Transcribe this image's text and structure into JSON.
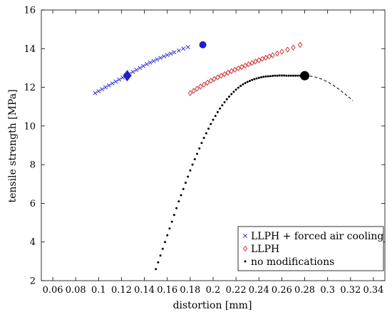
{
  "chart_data": {
    "type": "scatter",
    "xlabel": "distortion [mm]",
    "ylabel": "tensile strength [MPa]",
    "xlim": [
      0.05,
      0.35
    ],
    "ylim": [
      2,
      16
    ],
    "xticks": [
      "0.06",
      "0.08",
      "0.1",
      "0.12",
      "0.14",
      "0.16",
      "0.18",
      "0.2",
      "0.22",
      "0.24",
      "0.26",
      "0.28",
      "0.3",
      "0.32",
      "0.34"
    ],
    "yticks": [
      "2",
      "4",
      "6",
      "8",
      "10",
      "12",
      "14",
      "16"
    ],
    "grid": false,
    "legend_position": "bottom-right",
    "series": [
      {
        "name": "LLPH + forced air cooling",
        "marker": "x",
        "color": "#1f1fcc",
        "x": [
          0.097,
          0.1,
          0.103,
          0.106,
          0.109,
          0.112,
          0.115,
          0.118,
          0.121,
          0.124,
          0.127,
          0.13,
          0.133,
          0.136,
          0.139,
          0.142,
          0.145,
          0.148,
          0.151,
          0.154,
          0.157,
          0.16,
          0.163,
          0.166,
          0.17,
          0.174,
          0.178
        ],
        "y": [
          11.7,
          11.8,
          11.9,
          12.0,
          12.1,
          12.2,
          12.3,
          12.4,
          12.5,
          12.6,
          12.7,
          12.8,
          12.9,
          13.0,
          13.1,
          13.2,
          13.28,
          13.36,
          13.44,
          13.52,
          13.6,
          13.67,
          13.74,
          13.81,
          13.9,
          14.0,
          14.08
        ],
        "highlight_points": [
          {
            "x": 0.125,
            "y": 12.6,
            "shape": "diamond"
          },
          {
            "x": 0.191,
            "y": 14.2,
            "shape": "circle"
          }
        ]
      },
      {
        "name": "LLPH",
        "marker": "diamond",
        "color": "#cc2222",
        "x": [
          0.18,
          0.183,
          0.186,
          0.189,
          0.192,
          0.195,
          0.198,
          0.201,
          0.204,
          0.207,
          0.21,
          0.213,
          0.216,
          0.219,
          0.222,
          0.225,
          0.228,
          0.231,
          0.234,
          0.237,
          0.24,
          0.243,
          0.246,
          0.249,
          0.252,
          0.256,
          0.26,
          0.265,
          0.27,
          0.276
        ],
        "y": [
          11.7,
          11.82,
          11.93,
          12.04,
          12.14,
          12.24,
          12.34,
          12.43,
          12.52,
          12.6,
          12.68,
          12.76,
          12.84,
          12.91,
          12.98,
          13.05,
          13.12,
          13.19,
          13.26,
          13.33,
          13.4,
          13.47,
          13.53,
          13.59,
          13.66,
          13.75,
          13.84,
          13.95,
          14.06,
          14.2
        ]
      },
      {
        "name": "no modifications",
        "marker": "dot",
        "color": "#000000",
        "x": [
          0.15,
          0.152,
          0.154,
          0.156,
          0.158,
          0.16,
          0.162,
          0.164,
          0.166,
          0.168,
          0.17,
          0.172,
          0.174,
          0.176,
          0.178,
          0.18,
          0.182,
          0.184,
          0.186,
          0.188,
          0.19,
          0.192,
          0.194,
          0.196,
          0.198,
          0.2,
          0.202,
          0.204,
          0.206,
          0.208,
          0.21,
          0.212,
          0.214,
          0.216,
          0.218,
          0.22,
          0.222,
          0.224,
          0.226,
          0.228,
          0.23,
          0.232,
          0.234,
          0.236,
          0.238,
          0.24,
          0.242,
          0.244,
          0.246,
          0.248,
          0.25,
          0.252,
          0.254,
          0.256,
          0.258,
          0.26,
          0.262,
          0.264,
          0.266,
          0.268,
          0.27,
          0.272,
          0.274,
          0.276,
          0.278
        ],
        "y": [
          2.6,
          2.95,
          3.3,
          3.65,
          4.0,
          4.35,
          4.7,
          5.05,
          5.4,
          5.75,
          6.1,
          6.42,
          6.74,
          7.06,
          7.38,
          7.7,
          8.0,
          8.28,
          8.56,
          8.84,
          9.12,
          9.38,
          9.62,
          9.86,
          10.1,
          10.32,
          10.52,
          10.72,
          10.9,
          11.07,
          11.23,
          11.38,
          11.52,
          11.65,
          11.77,
          11.88,
          11.98,
          12.07,
          12.15,
          12.22,
          12.28,
          12.33,
          12.38,
          12.42,
          12.46,
          12.49,
          12.52,
          12.54,
          12.56,
          12.57,
          12.58,
          12.59,
          12.6,
          12.6,
          12.61,
          12.61,
          12.61,
          12.6,
          12.6,
          12.6,
          12.6,
          12.6,
          12.6,
          12.6,
          12.6
        ],
        "highlight_points": [
          {
            "x": 0.28,
            "y": 12.6,
            "shape": "circle"
          }
        ],
        "trend_dashed": {
          "x": [
            0.28,
            0.285,
            0.29,
            0.295,
            0.3,
            0.305,
            0.31,
            0.315,
            0.32,
            0.322
          ],
          "y": [
            12.6,
            12.58,
            12.52,
            12.42,
            12.28,
            12.1,
            11.9,
            11.66,
            11.42,
            11.3
          ]
        }
      }
    ]
  }
}
